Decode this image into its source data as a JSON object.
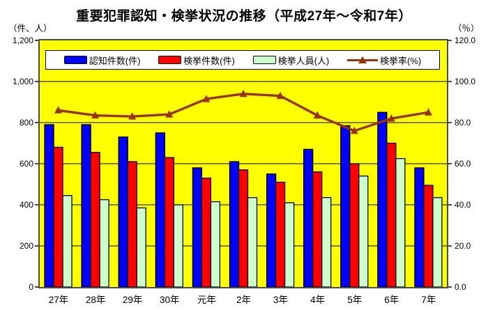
{
  "title": "重要犯罪認知・検挙状況の推移（平成27年～令和7年）",
  "left_axis_unit": "（件、人）",
  "right_axis_unit": "（％）",
  "left_ticks": [
    "1,200",
    "1,000",
    "800",
    "600",
    "400",
    "200",
    "0"
  ],
  "right_ticks": [
    "120.0",
    "100.0",
    "80.0",
    "60.0",
    "40.0",
    "20.0",
    "0.0"
  ],
  "colors": {
    "plot_background": "#ffff00",
    "legend_background": "#ffffff",
    "bar_recognized": "#0000ff",
    "bar_cleared": "#ff0000",
    "bar_persons": "#ccffcc",
    "line_rate": "#993300",
    "grid": "#000000",
    "bar_outline": "#000000"
  },
  "chart_data": {
    "type": "bar",
    "note": "grouped bars on left axis + line on right axis",
    "categories": [
      "27年",
      "28年",
      "29年",
      "30年",
      "元年",
      "2年",
      "3年",
      "4年",
      "5年",
      "6年",
      "7年"
    ],
    "series": [
      {
        "key": "recognized-cases",
        "name": "認知件数(件)",
        "type": "bar",
        "axis": "left",
        "color": "#0000ff",
        "values": [
          790,
          790,
          730,
          750,
          580,
          610,
          550,
          670,
          785,
          850,
          580
        ]
      },
      {
        "key": "cleared-cases",
        "name": "検挙件数(件)",
        "type": "bar",
        "axis": "left",
        "color": "#ff0000",
        "values": [
          680,
          655,
          610,
          630,
          530,
          570,
          510,
          560,
          600,
          700,
          495
        ]
      },
      {
        "key": "persons-arrested",
        "name": "検挙人員(人)",
        "type": "bar",
        "axis": "left",
        "color": "#ccffcc",
        "values": [
          445,
          425,
          385,
          400,
          415,
          435,
          410,
          435,
          540,
          625,
          435
        ]
      },
      {
        "key": "clearance-rate",
        "name": "検挙率(%)",
        "type": "line",
        "axis": "right",
        "color": "#993300",
        "values": [
          86.0,
          83.5,
          83.0,
          84.0,
          91.5,
          94.0,
          93.0,
          83.5,
          76.0,
          82.0,
          85.0
        ]
      }
    ],
    "left_ylim": [
      0,
      1200
    ],
    "right_ylim": [
      0,
      120
    ],
    "grid": "horizontal",
    "legend_position": "inside-top",
    "plot_bg": "#ffff00"
  }
}
